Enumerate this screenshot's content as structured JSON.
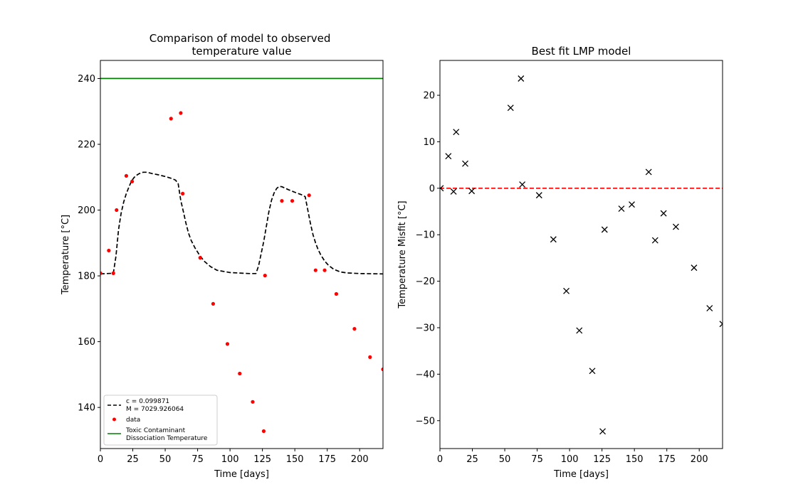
{
  "chart_data": [
    {
      "type": "line",
      "title": "Comparison of model to observed\ntemperature value",
      "xlabel": "Time [days]",
      "ylabel": "Temperature [°C]",
      "xlim": [
        0,
        218
      ],
      "ylim": [
        127.5,
        245.5
      ],
      "xticks": [
        0,
        25,
        50,
        75,
        100,
        125,
        150,
        175,
        200
      ],
      "yticks": [
        140,
        160,
        180,
        200,
        220,
        240
      ],
      "grid": false,
      "legend_position": "lower-left",
      "legend": [
        "c = 0.099871\nM = 7029.926064",
        "data",
        "Toxic Contaminant\nDissociation Temperature"
      ],
      "series": [
        {
          "name": "c = 0.099871\nM = 7029.926064",
          "style": "dashed",
          "color": "#000000",
          "x": [
            0,
            5,
            10,
            12,
            14,
            16,
            18,
            20,
            22,
            24,
            26,
            28,
            30,
            33,
            36,
            40,
            45,
            50,
            55,
            58,
            60,
            62,
            64,
            66,
            68,
            70,
            73,
            76,
            80,
            85,
            90,
            100,
            110,
            115,
            120,
            122,
            124,
            126,
            128,
            130,
            132,
            134,
            136,
            138,
            140,
            145,
            150,
            155,
            158,
            160,
            162,
            164,
            166,
            168,
            170,
            173,
            176,
            180,
            185,
            190,
            200,
            218
          ],
          "y": [
            180.6,
            180.7,
            180.8,
            186,
            194,
            199,
            202.5,
            205,
            207,
            208.8,
            209.9,
            210.6,
            211.1,
            211.5,
            211.5,
            211.1,
            210.7,
            210.2,
            209.6,
            209.1,
            208,
            203,
            199.5,
            196,
            193,
            190.8,
            188.5,
            186.6,
            184.5,
            182.8,
            181.7,
            181,
            180.8,
            180.7,
            180.7,
            183,
            186.7,
            190.5,
            195,
            199.5,
            203,
            205.2,
            206.6,
            207.2,
            207.1,
            206.2,
            205.4,
            204.7,
            204.1,
            200,
            196,
            192.5,
            190,
            188,
            186.4,
            184.5,
            183.2,
            182,
            181.2,
            180.9,
            180.7,
            180.6
          ]
        },
        {
          "name": "data",
          "style": "points",
          "color": "#ff0000",
          "x": [
            0,
            6.5,
            10,
            12.5,
            20,
            24.5,
            54.5,
            62,
            63.5,
            77,
            87,
            98,
            107.5,
            117.5,
            126,
            127,
            140,
            148,
            161,
            166,
            173,
            182,
            196,
            208,
            218
          ],
          "y": [
            180.8,
            187.7,
            180.8,
            200,
            210.4,
            208.7,
            227.8,
            229.5,
            205,
            185.5,
            171.5,
            159.3,
            150.3,
            141.7,
            132.8,
            180.1,
            202.8,
            202.8,
            204.5,
            181.7,
            181.7,
            174.5,
            163.9,
            155.3,
            151.6
          ]
        },
        {
          "name": "Toxic Contaminant\nDissociation Temperature",
          "style": "solid",
          "color": "#008000",
          "x": [
            0,
            218
          ],
          "y": [
            240,
            240
          ]
        }
      ]
    },
    {
      "type": "scatter",
      "title": "Best fit LMP model",
      "xlabel": "Time [days]",
      "ylabel": "Temperature Misfit [°C]",
      "xlim": [
        0,
        218
      ],
      "ylim": [
        -56,
        27.5
      ],
      "xticks": [
        0,
        25,
        50,
        75,
        100,
        125,
        150,
        175,
        200
      ],
      "yticks": [
        -50,
        -40,
        -30,
        -20,
        -10,
        0,
        10,
        20
      ],
      "grid": false,
      "series": [
        {
          "style": "x-markers",
          "color": "#000000",
          "x": [
            0.5,
            6.5,
            10.5,
            12.5,
            19.5,
            24.5,
            54.5,
            62.5,
            63.5,
            76.5,
            87.5,
            97.5,
            107.5,
            117.5,
            125.5,
            127,
            140,
            148,
            161,
            166,
            172.5,
            182,
            196,
            208,
            218
          ],
          "y": [
            0,
            6.9,
            -0.7,
            12.1,
            5.3,
            -0.6,
            17.3,
            23.6,
            0.8,
            -1.5,
            -11,
            -22.1,
            -30.6,
            -39.3,
            -52.3,
            -8.9,
            -4.4,
            -3.5,
            3.5,
            -11.2,
            -5.4,
            -8.3,
            -17.1,
            -25.8,
            -29.2
          ]
        },
        {
          "style": "dashed",
          "color": "#ff0000",
          "x": [
            0,
            218
          ],
          "y": [
            0,
            0
          ]
        }
      ]
    }
  ]
}
